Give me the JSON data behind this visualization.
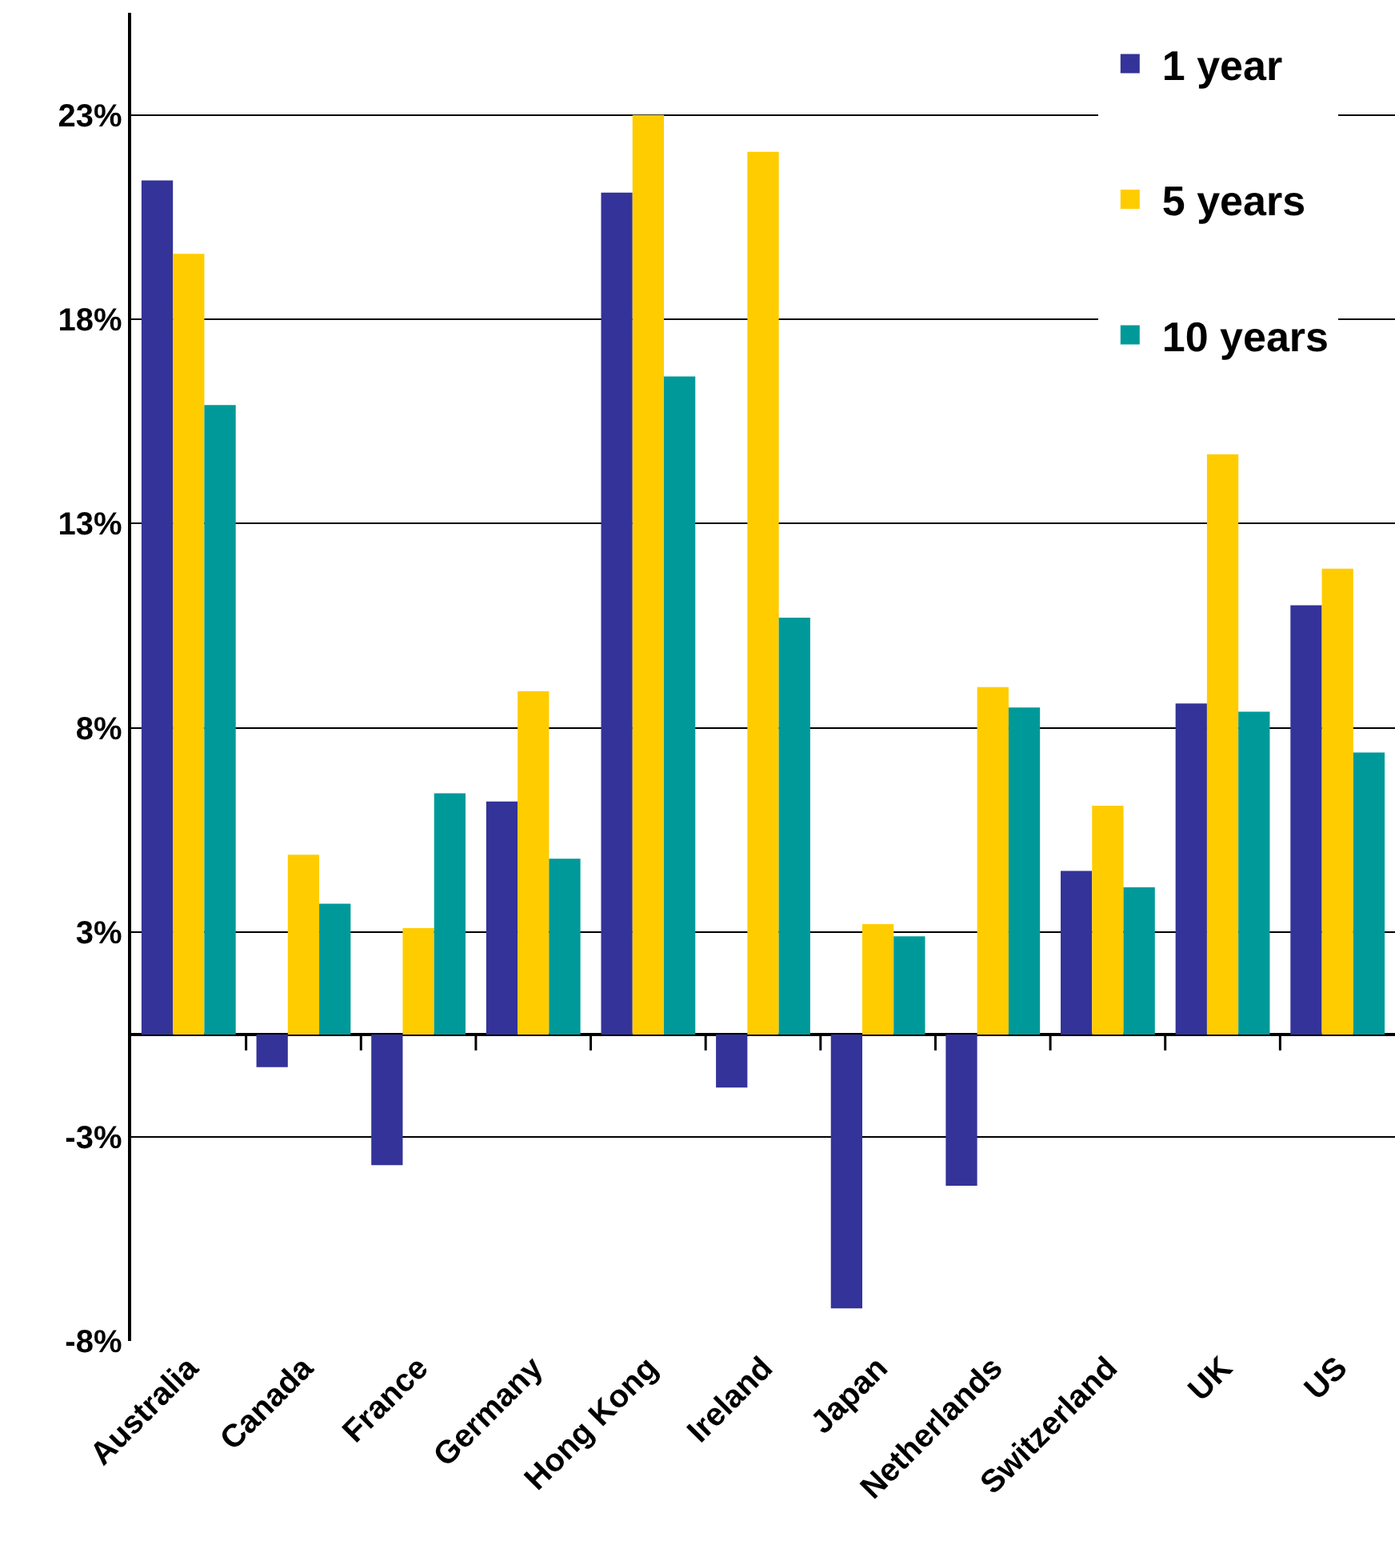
{
  "chart_data": {
    "type": "bar",
    "categories": [
      "Australia",
      "Canada",
      "France",
      "Germany",
      "Hong Kong",
      "Ireland",
      "Japan",
      "Netherlands",
      "Switzerland",
      "UK",
      "US"
    ],
    "series": [
      {
        "name": "1 year",
        "color": "#333399",
        "values": [
          20.9,
          -0.8,
          -3.2,
          5.7,
          20.6,
          -1.3,
          -6.7,
          -3.7,
          4.0,
          8.1,
          10.5
        ]
      },
      {
        "name": "5 years",
        "color": "#ffcc00",
        "values": [
          19.1,
          4.4,
          2.6,
          8.4,
          22.5,
          21.6,
          2.7,
          8.5,
          5.6,
          14.2,
          11.4
        ]
      },
      {
        "name": "10 years",
        "color": "#009999",
        "values": [
          15.4,
          3.2,
          5.9,
          4.3,
          16.1,
          10.2,
          2.4,
          8.0,
          3.6,
          7.9,
          6.9
        ]
      }
    ],
    "ylim": [
      -7.5,
      25
    ],
    "yticks": [
      {
        "value": 22.5,
        "label": "23%"
      },
      {
        "value": 17.5,
        "label": "18%"
      },
      {
        "value": 12.5,
        "label": "13%"
      },
      {
        "value": 7.5,
        "label": "8%"
      },
      {
        "value": 2.5,
        "label": "3%"
      },
      {
        "value": -2.5,
        "label": "-3%"
      },
      {
        "value": -7.5,
        "label": "-8%"
      }
    ],
    "grid": "y",
    "legend": "top right"
  }
}
